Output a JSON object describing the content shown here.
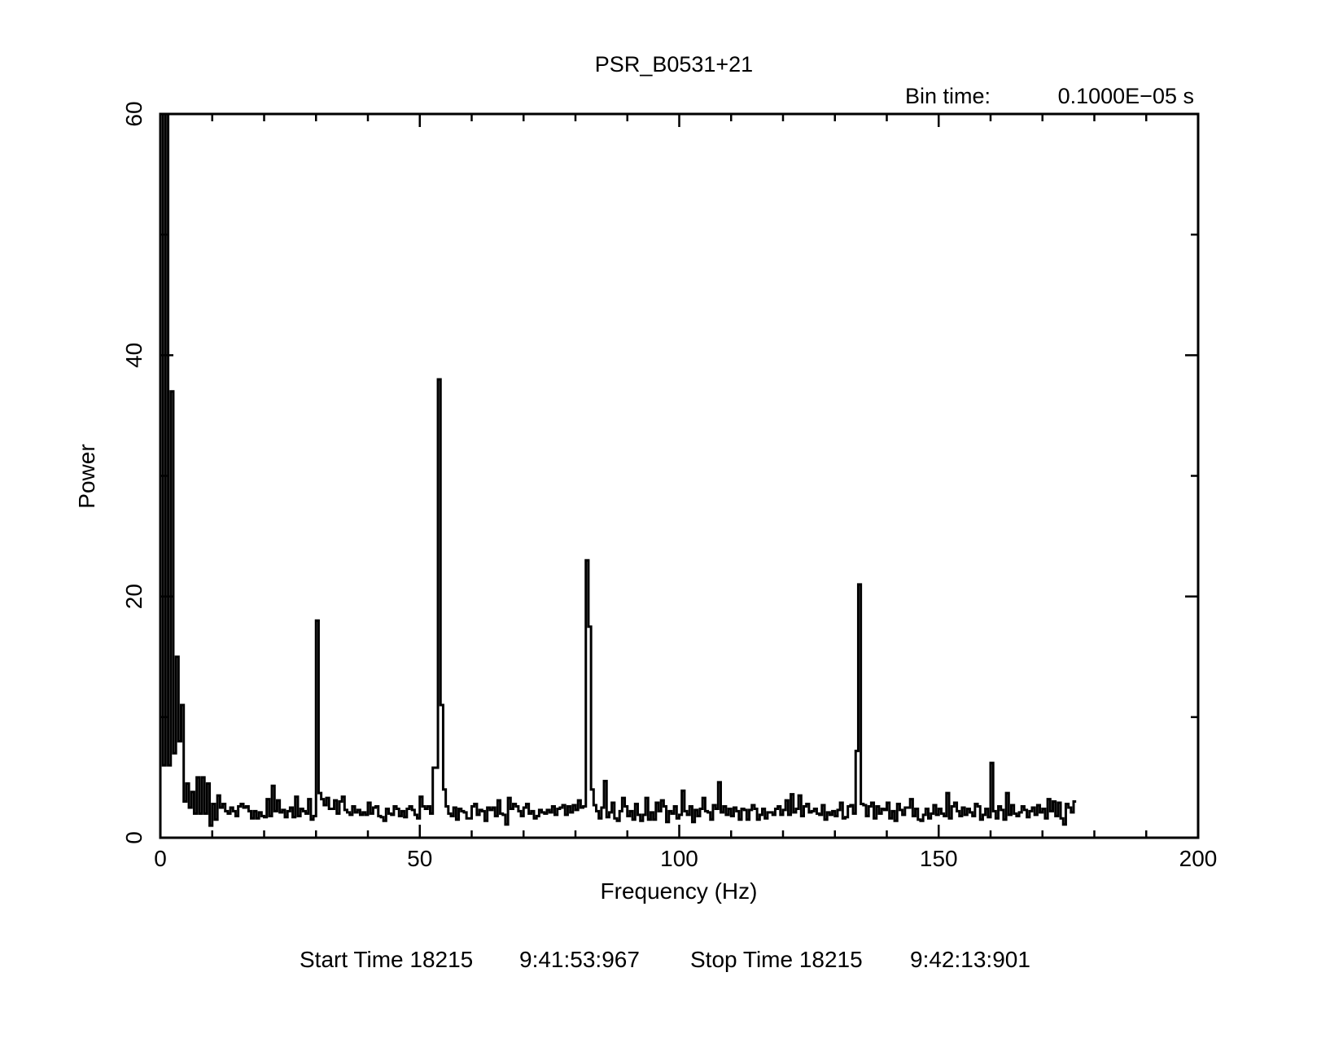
{
  "chart_data": {
    "type": "line",
    "title": "PSR_B0531+21",
    "subtitle_label": "Bin time:",
    "subtitle_value": "0.1000E−05 s",
    "xlabel": "Frequency (Hz)",
    "ylabel": "Power",
    "xlim": [
      0,
      200
    ],
    "ylim": [
      0,
      60
    ],
    "x_ticks": [
      0,
      50,
      100,
      150,
      200
    ],
    "x_tick_labels": [
      "0",
      "50",
      "100",
      "150",
      "200"
    ],
    "y_ticks": [
      0,
      20,
      40,
      60
    ],
    "y_tick_labels": [
      "0",
      "20",
      "40",
      "60"
    ],
    "x_minor_step": 10,
    "y_minor_step": 10,
    "grid": false,
    "legend": "none",
    "step_width": 0.5,
    "series": [
      {
        "values": [
          60,
          6,
          60,
          6,
          37,
          7,
          15,
          8,
          11,
          3,
          4.5,
          2.5,
          3.8,
          2,
          5,
          2,
          5,
          2,
          4.5,
          1,
          2.8,
          1.5,
          3.5,
          2.5,
          2.8,
          2.2,
          2,
          2.5,
          2.2,
          1.8,
          2.6,
          2.8,
          2.5,
          2.6,
          2.2,
          1.6,
          2.2,
          1.6,
          2.1,
          1.8,
          1.7,
          3.2,
          1.8,
          4.3,
          2.2,
          3.1,
          2.1,
          2.3,
          1.7,
          2.2,
          2.5,
          1.7,
          3.4,
          1.8,
          2.4,
          2.2,
          2,
          3.2,
          1.5,
          1.8,
          18,
          3.7,
          3.2,
          2.7,
          3.3,
          2.4,
          2.4,
          3.1,
          2,
          3,
          3.4,
          2.3,
          2.1,
          1.9,
          2.6,
          2.1,
          2.3,
          1.9,
          2.1,
          1.9,
          2.9,
          2,
          2.5,
          2.6,
          1.8,
          1.7,
          1.4,
          2.4,
          2,
          1.9,
          2.6,
          2.4,
          1.8,
          2.2,
          1.7,
          2.4,
          2.6,
          2.3,
          1.9,
          1.6,
          3.4,
          2.6,
          2.4,
          2.6,
          2,
          5.8,
          5.8,
          38,
          11,
          4,
          2.6,
          2,
          1.8,
          2.5,
          1.5,
          2.4,
          2.2,
          2.1,
          1.6,
          1.6,
          2.6,
          2.8,
          1.9,
          2.3,
          2.2,
          1.4,
          2.5,
          2.3,
          2.5,
          1.8,
          3.1,
          2,
          1.9,
          1.1,
          3.3,
          2.4,
          2.8,
          2.6,
          2.2,
          1.8,
          2.5,
          2.8,
          2,
          2.2,
          1.6,
          1.8,
          2.3,
          2.1,
          2,
          2.3,
          2.1,
          2.6,
          1.9,
          2.4,
          2.5,
          2.7,
          1.9,
          2.6,
          2.1,
          2.7,
          2.3,
          3.1,
          2.5,
          2.6,
          23,
          17.5,
          4,
          2.7,
          2.2,
          1.6,
          2.5,
          4.7,
          1.7,
          2.1,
          2.9,
          1.6,
          1.4,
          2.2,
          3.3,
          2.6,
          1.8,
          2.2,
          1.5,
          2.8,
          1.9,
          1.4,
          1.9,
          3.3,
          1.5,
          2.1,
          1.5,
          2.9,
          2.2,
          3.1,
          2.6,
          1.3,
          2.2,
          2,
          2.6,
          1.6,
          1.9,
          3.9,
          2.2,
          1.9,
          2.6,
          1.3,
          2.3,
          1.8,
          2.4,
          3.3,
          2.2,
          2.1,
          1.5,
          2.7,
          2.4,
          4.6,
          2.1,
          2.6,
          1.9,
          2.4,
          1.8,
          2.5,
          2.2,
          1.5,
          2.4,
          2.3,
          1.5,
          2.3,
          2.7,
          2.4,
          1.5,
          1.9,
          2.4,
          1.6,
          2.1,
          2.1,
          1.9,
          2.4,
          2.6,
          1.9,
          2.3,
          3.1,
          1.9,
          3.6,
          2.1,
          2.4,
          3.5,
          1.8,
          2.6,
          2.8,
          2.1,
          2.2,
          2.4,
          2,
          1.9,
          2.7,
          1.5,
          2.1,
          1.9,
          2.2,
          1.8,
          2.3,
          2.9,
          1.6,
          1.7,
          2.6,
          2.7,
          2,
          7.2,
          21,
          2.8,
          2.7,
          1.8,
          2.6,
          2.9,
          1.6,
          2.6,
          2,
          2.4,
          2.3,
          2.9,
          1.6,
          2.2,
          1.4,
          2.8,
          2.3,
          1.9,
          2.5,
          2.5,
          3.2,
          1.8,
          2.4,
          1.5,
          1.4,
          1.9,
          2.4,
          1.6,
          2,
          2.7,
          1.9,
          2.4,
          2,
          1.8,
          3.7,
          1.6,
          2.6,
          2.9,
          2.2,
          1.8,
          2.5,
          1.9,
          2.4,
          2.1,
          1.8,
          2.8,
          2.6,
          1.5,
          1.9,
          2.4,
          1.7,
          6.2,
          2.2,
          1.6,
          2.6,
          2.3,
          1.5,
          3.7,
          1.9,
          2.7,
          2,
          1.8,
          2.1,
          2.6,
          2.3,
          1.7,
          2.2,
          2.5,
          1.9,
          2.7,
          2.1,
          2.4,
          1.6,
          3.2,
          2.2,
          3,
          1.8,
          2.9,
          1.6,
          1.1,
          2.8,
          2.5,
          2.1,
          3
        ]
      }
    ]
  },
  "footer": {
    "start_label": "Start Time 18215",
    "start_time": "9:41:53:967",
    "stop_label": "Stop Time 18215",
    "stop_time": "9:42:13:901"
  }
}
